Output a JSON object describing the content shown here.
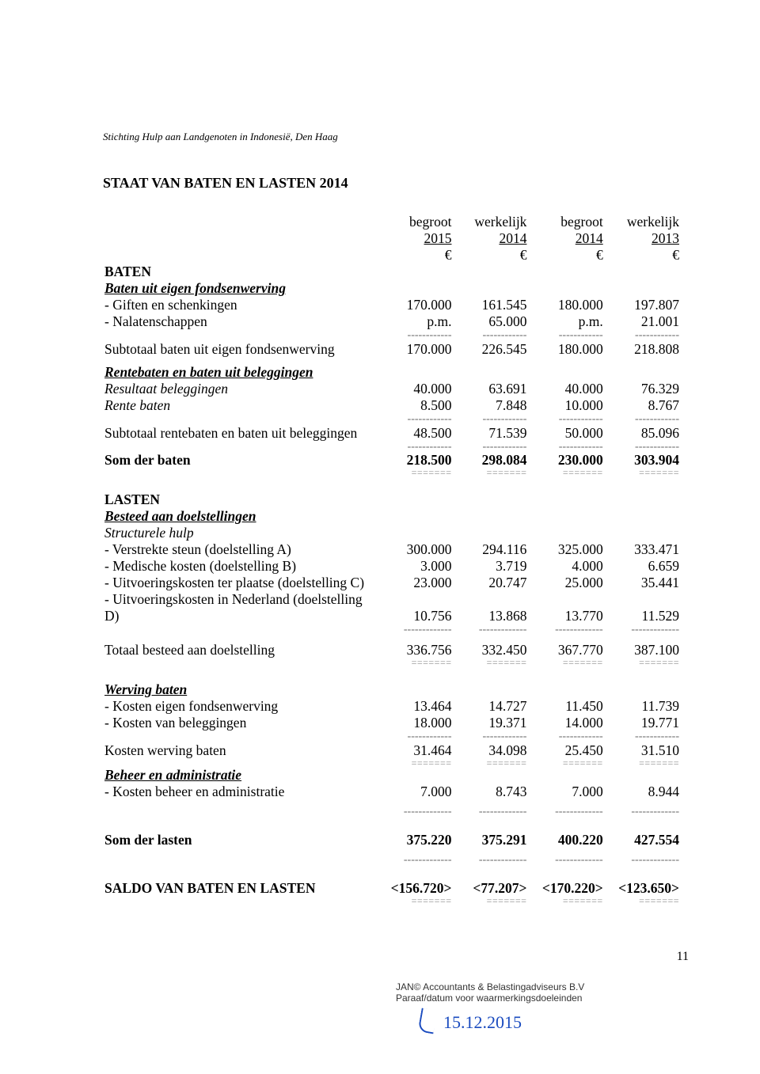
{
  "org_line": "Stichting Hulp aan Landgenoten in Indonesië, Den Haag",
  "title": "STAAT VAN BATEN EN LASTEN 2014",
  "headers": {
    "c1a": "begroot",
    "c1b": "2015",
    "c1c": "€",
    "c2a": "werkelijk",
    "c2b": "2014",
    "c2c": "€",
    "c3a": "begroot",
    "c3b": "2014",
    "c3c": "€",
    "c4a": "werkelijk",
    "c4b": "2013",
    "c4c": "€"
  },
  "baten": {
    "hdr": "BATEN",
    "sub1": "Baten uit eigen fondsenwerving",
    "r1": {
      "l": "- Giften en schenkingen",
      "v": [
        "170.000",
        "161.545",
        "180.000",
        "197.807"
      ]
    },
    "r2": {
      "l": "- Nalatenschappen",
      "v": [
        "p.m.",
        "65.000",
        "p.m.",
        "21.001"
      ]
    },
    "st1": {
      "l": "Subtotaal baten uit eigen fondsenwerving",
      "v": [
        "170.000",
        "226.545",
        "180.000",
        "218.808"
      ]
    },
    "sub2": "Rentebaten en baten uit beleggingen",
    "r3": {
      "l": "Resultaat beleggingen",
      "v": [
        "40.000",
        "63.691",
        "40.000",
        "76.329"
      ]
    },
    "r4": {
      "l": "Rente baten",
      "v": [
        "8.500",
        "7.848",
        "10.000",
        "8.767"
      ]
    },
    "st2": {
      "l": "Subtotaal rentebaten en baten uit beleggingen",
      "v": [
        "48.500",
        "71.539",
        "50.000",
        "85.096"
      ]
    },
    "som": {
      "l": "Som der baten",
      "v": [
        "218.500",
        "298.084",
        "230.000",
        "303.904"
      ]
    }
  },
  "lasten": {
    "hdr": "LASTEN",
    "sub1": "Besteed aan doelstellingen",
    "struct": "Structurele hulp",
    "r1": {
      "l": "- Verstrekte steun (doelstelling A)",
      "v": [
        "300.000",
        "294.116",
        "325.000",
        "333.471"
      ]
    },
    "r2": {
      "l": "- Medische kosten (doelstelling B)",
      "v": [
        "3.000",
        "3.719",
        "4.000",
        "6.659"
      ]
    },
    "r3": {
      "l": "- Uitvoeringskosten ter plaatse (doelstelling C)",
      "v": [
        "23.000",
        "20.747",
        "25.000",
        "35.441"
      ]
    },
    "r4": {
      "l": "- Uitvoeringskosten in Nederland (doelstelling D)",
      "v": [
        "10.756",
        "13.868",
        "13.770",
        "11.529"
      ]
    },
    "tot": {
      "l": "Totaal besteed aan doelstelling",
      "v": [
        "336.756",
        "332.450",
        "367.770",
        "387.100"
      ]
    },
    "sub2": "Werving baten",
    "r5": {
      "l": "- Kosten eigen fondsenwerving",
      "v": [
        "13.464",
        "14.727",
        "11.450",
        "11.739"
      ]
    },
    "r6": {
      "l": "- Kosten van beleggingen",
      "v": [
        "18.000",
        "19.371",
        "14.000",
        "19.771"
      ]
    },
    "st2": {
      "l": "Kosten werving baten",
      "v": [
        "31.464",
        "34.098",
        "25.450",
        "31.510"
      ]
    },
    "sub3": "Beheer en administratie",
    "r7": {
      "l": "- Kosten beheer en administratie",
      "v": [
        "7.000",
        "8.743",
        "7.000",
        "8.944"
      ]
    },
    "som": {
      "l": "Som der lasten",
      "v": [
        "375.220",
        "375.291",
        "400.220",
        "427.554"
      ]
    }
  },
  "saldo": {
    "l": "SALDO VAN BATEN EN LASTEN",
    "v": [
      "<156.720>",
      "<77.207>",
      "<170.220>",
      "<123.650>"
    ]
  },
  "page_num": "11",
  "stamp": {
    "l1": "JAN© Accountants & Belastingadviseurs B.V",
    "l2": "Paraaf/datum voor waarmerkingsdoeleinden",
    "date": "15.12.2015"
  },
  "dash": "------------",
  "dash2": "-------------",
  "dbl": "======="
}
